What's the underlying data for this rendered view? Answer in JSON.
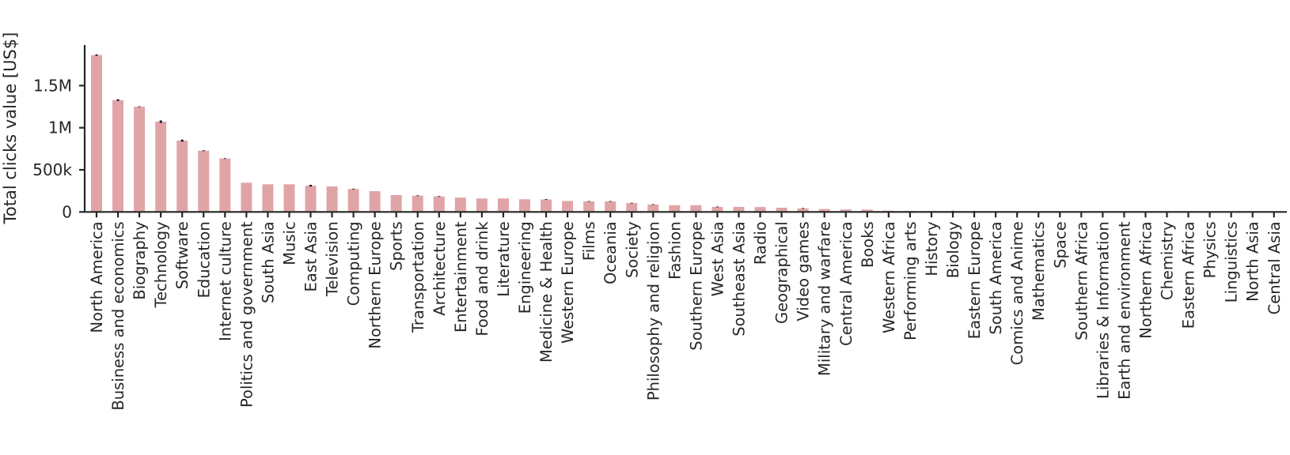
{
  "chart_data": {
    "type": "bar",
    "title": "",
    "xlabel": "",
    "ylabel": "Total clicks value [US$]",
    "ylim": [
      0,
      1950000
    ],
    "yticks": [
      0,
      500000,
      1000000,
      1500000
    ],
    "ytick_labels": [
      "0",
      "500k",
      "1M",
      "1.5M"
    ],
    "grid": false,
    "legend": null,
    "bar_color": "#e0a4a7",
    "errorbar_color": "#111111",
    "categories": [
      "North America",
      "Business and economics",
      "Biography",
      "Technology",
      "Software",
      "Education",
      "Internet culture",
      "Politics and government",
      "South Asia",
      "Music",
      "East Asia",
      "Television",
      "Computing",
      "Northern Europe",
      "Sports",
      "Transportation",
      "Architecture",
      "Entertainment",
      "Food and drink",
      "Literature",
      "Engineering",
      "Medicine & Health",
      "Western Europe",
      "Films",
      "Oceania",
      "Society",
      "Philosophy and religion",
      "Fashion",
      "Southern Europe",
      "West Asia",
      "Southeast Asia",
      "Radio",
      "Geographical",
      "Video games",
      "Military and warfare",
      "Central America",
      "Books",
      "Western Africa",
      "Performing arts",
      "History",
      "Biology",
      "Eastern Europe",
      "South America",
      "Comics and Anime",
      "Mathematics",
      "Space",
      "Southern Africa",
      "Libraries & Information",
      "Earth and environment",
      "Northern Africa",
      "Chemistry",
      "Eastern Africa",
      "Physics",
      "Linguistics",
      "North Asia",
      "Central Asia"
    ],
    "values": [
      1863000,
      1328000,
      1250000,
      1072000,
      847000,
      728000,
      634000,
      347000,
      328000,
      328000,
      312000,
      303000,
      272000,
      247000,
      200000,
      193000,
      184000,
      170000,
      160000,
      160000,
      150000,
      148000,
      130000,
      125000,
      125000,
      105000,
      88000,
      80000,
      80000,
      60000,
      60000,
      58000,
      50000,
      42000,
      35000,
      30000,
      28000,
      15000,
      12000,
      12000,
      10000,
      8000,
      6000,
      4000,
      2500,
      2000,
      1800,
      1500,
      1300,
      1100,
      900,
      700,
      500,
      400,
      300,
      200
    ],
    "errors": [
      8000,
      10000,
      4000,
      14000,
      12000,
      5000,
      4000,
      0,
      0,
      0,
      10000,
      0,
      4000,
      0,
      0,
      4000,
      4000,
      0,
      0,
      0,
      0,
      4000,
      0,
      4000,
      4000,
      4000,
      4000,
      0,
      0,
      4000,
      0,
      0,
      0,
      4000,
      0,
      0,
      0,
      0,
      0,
      0,
      3000,
      3000,
      3000,
      0,
      0,
      0,
      0,
      0,
      0,
      0,
      0,
      0,
      0,
      0,
      0,
      0
    ]
  }
}
